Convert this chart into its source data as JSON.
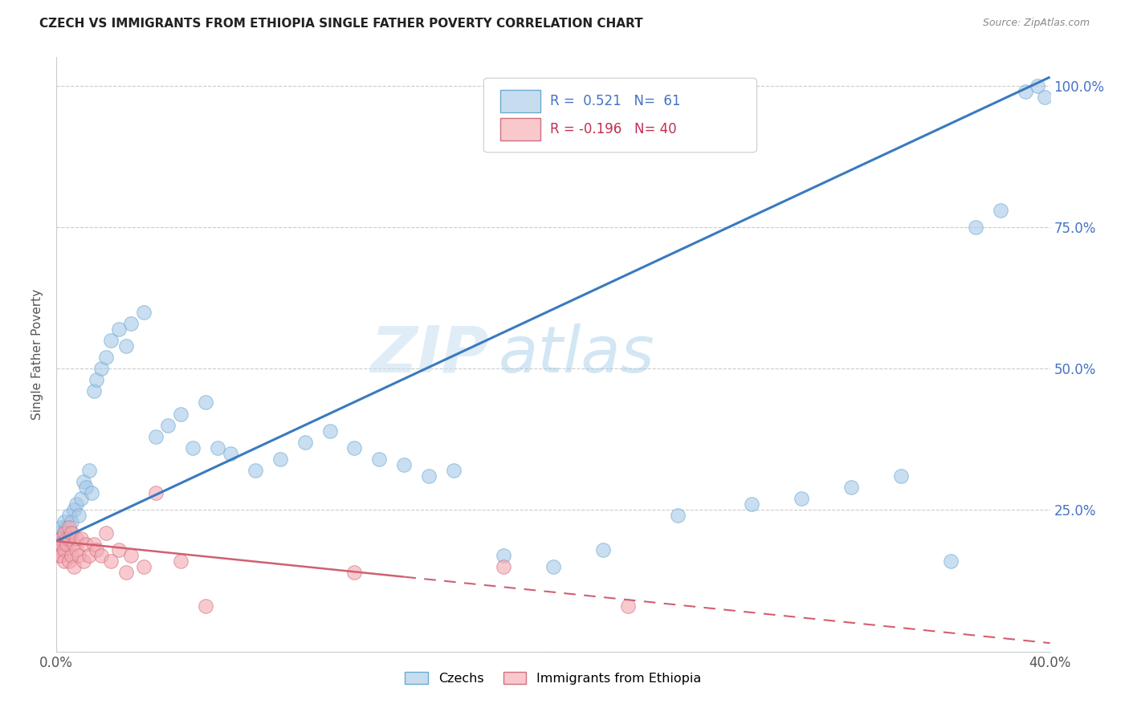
{
  "title": "CZECH VS IMMIGRANTS FROM ETHIOPIA SINGLE FATHER POVERTY CORRELATION CHART",
  "source": "Source: ZipAtlas.com",
  "ylabel": "Single Father Poverty",
  "czech_R": 0.521,
  "czech_N": 61,
  "ethiopia_R": -0.196,
  "ethiopia_N": 40,
  "czech_color": "#a8c8e8",
  "ethiopia_color": "#f4a8b0",
  "trendline_czech_color": "#3a7abf",
  "trendline_ethiopia_color": "#d06070",
  "watermark_zip": "ZIP",
  "watermark_atlas": "atlas",
  "czech_x": [
    0.001,
    0.001,
    0.002,
    0.002,
    0.002,
    0.003,
    0.003,
    0.003,
    0.004,
    0.004,
    0.005,
    0.005,
    0.006,
    0.006,
    0.007,
    0.008,
    0.009,
    0.01,
    0.011,
    0.012,
    0.013,
    0.014,
    0.015,
    0.016,
    0.018,
    0.02,
    0.022,
    0.025,
    0.028,
    0.03,
    0.035,
    0.04,
    0.045,
    0.05,
    0.055,
    0.06,
    0.065,
    0.07,
    0.08,
    0.09,
    0.1,
    0.11,
    0.12,
    0.13,
    0.14,
    0.15,
    0.16,
    0.18,
    0.2,
    0.22,
    0.25,
    0.28,
    0.3,
    0.32,
    0.34,
    0.36,
    0.37,
    0.38,
    0.39,
    0.395,
    0.398
  ],
  "czech_y": [
    0.21,
    0.19,
    0.22,
    0.2,
    0.18,
    0.23,
    0.2,
    0.21,
    0.22,
    0.19,
    0.24,
    0.2,
    0.23,
    0.21,
    0.25,
    0.26,
    0.24,
    0.27,
    0.3,
    0.29,
    0.32,
    0.28,
    0.46,
    0.48,
    0.5,
    0.52,
    0.55,
    0.57,
    0.54,
    0.58,
    0.6,
    0.38,
    0.4,
    0.42,
    0.36,
    0.44,
    0.36,
    0.35,
    0.32,
    0.34,
    0.37,
    0.39,
    0.36,
    0.34,
    0.33,
    0.31,
    0.32,
    0.17,
    0.15,
    0.18,
    0.24,
    0.26,
    0.27,
    0.29,
    0.31,
    0.16,
    0.75,
    0.78,
    0.99,
    1.0,
    0.98
  ],
  "ethiopia_x": [
    0.001,
    0.001,
    0.001,
    0.002,
    0.002,
    0.002,
    0.003,
    0.003,
    0.003,
    0.004,
    0.004,
    0.005,
    0.005,
    0.005,
    0.006,
    0.006,
    0.007,
    0.007,
    0.008,
    0.008,
    0.009,
    0.01,
    0.011,
    0.012,
    0.013,
    0.015,
    0.016,
    0.018,
    0.02,
    0.022,
    0.025,
    0.028,
    0.03,
    0.035,
    0.04,
    0.05,
    0.06,
    0.12,
    0.18,
    0.23
  ],
  "ethiopia_y": [
    0.19,
    0.18,
    0.17,
    0.2,
    0.19,
    0.17,
    0.21,
    0.18,
    0.16,
    0.2,
    0.19,
    0.22,
    0.2,
    0.16,
    0.21,
    0.17,
    0.19,
    0.15,
    0.2,
    0.18,
    0.17,
    0.2,
    0.16,
    0.19,
    0.17,
    0.19,
    0.18,
    0.17,
    0.21,
    0.16,
    0.18,
    0.14,
    0.17,
    0.15,
    0.28,
    0.16,
    0.08,
    0.14,
    0.15,
    0.08
  ],
  "xlim": [
    0.0,
    0.4
  ],
  "ylim": [
    0.0,
    1.05
  ],
  "ytick_vals": [
    0.0,
    0.25,
    0.5,
    0.75,
    1.0
  ],
  "ytick_labels": [
    "",
    "25.0%",
    "50.0%",
    "75.0%",
    "100.0%"
  ],
  "xtick_vals": [
    0.0,
    0.05,
    0.1,
    0.15,
    0.2,
    0.25,
    0.3,
    0.35,
    0.4
  ],
  "xtick_labels": [
    "0.0%",
    "",
    "",
    "",
    "",
    "",
    "",
    "",
    "40.0%"
  ]
}
